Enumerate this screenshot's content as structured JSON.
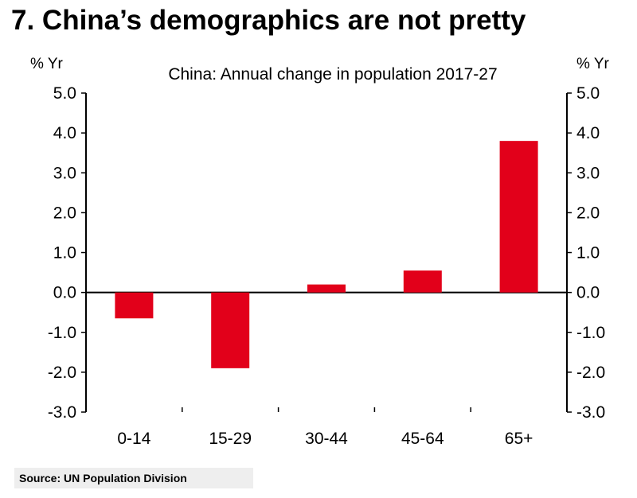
{
  "title": "7. China’s demographics are not pretty",
  "source": "Source:  UN Population Division",
  "chart_data": {
    "type": "bar",
    "title": "China: Annual change in population 2017-27",
    "ylabel_left": "% Yr",
    "ylabel_right": "% Yr",
    "categories": [
      "0-14",
      "15-29",
      "30-44",
      "45-64",
      "65+"
    ],
    "values": [
      -0.65,
      -1.9,
      0.2,
      0.55,
      3.8
    ],
    "ylim": [
      -3.0,
      5.0
    ],
    "yticks": [
      "5.0",
      "4.0",
      "3.0",
      "2.0",
      "1.0",
      "0.0",
      "-1.0",
      "-2.0",
      "-3.0"
    ],
    "bar_color": "#e2001a",
    "grid": false,
    "legend": "none"
  }
}
